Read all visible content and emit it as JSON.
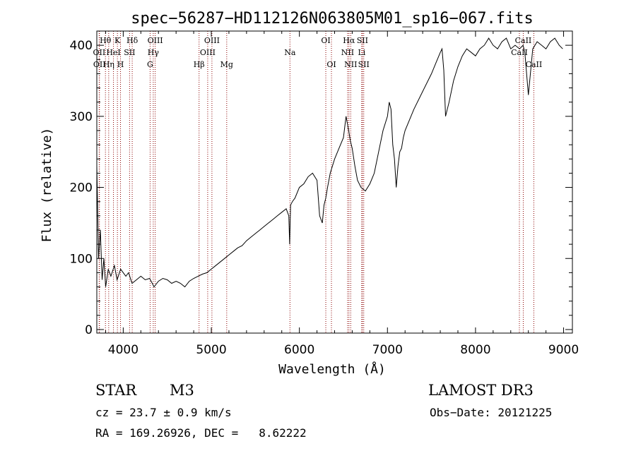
{
  "chart_data": {
    "type": "line",
    "title": "spec−56287−HD112126N063805M01_sp16−067.fits",
    "xlabel": "Wavelength (Å)",
    "ylabel": "Flux (relative)",
    "xlim": [
      3700,
      9100
    ],
    "ylim": [
      -5,
      420
    ],
    "xticks": [
      4000,
      5000,
      6000,
      7000,
      8000,
      9000
    ],
    "yticks": [
      0,
      100,
      200,
      300,
      400
    ],
    "series": [
      {
        "x": [
          3700,
          3720,
          3740,
          3760,
          3780,
          3800,
          3830,
          3860,
          3900,
          3930,
          3970,
          4000,
          4030,
          4060,
          4100,
          4150,
          4200,
          4250,
          4300,
          4350,
          4400,
          4450,
          4500,
          4550,
          4600,
          4650,
          4700,
          4750,
          4800,
          4850,
          4900,
          4950,
          5000,
          5050,
          5100,
          5150,
          5200,
          5250,
          5300,
          5350,
          5400,
          5450,
          5500,
          5550,
          5600,
          5650,
          5700,
          5750,
          5800,
          5850,
          5880,
          5890,
          5900,
          5920,
          5950,
          6000,
          6050,
          6100,
          6150,
          6200,
          6230,
          6260,
          6280,
          6300,
          6320,
          6350,
          6400,
          6450,
          6500,
          6530,
          6560,
          6580,
          6600,
          6630,
          6660,
          6700,
          6750,
          6800,
          6850,
          6900,
          6950,
          7000,
          7020,
          7040,
          7060,
          7080,
          7100,
          7120,
          7140,
          7160,
          7180,
          7200,
          7300,
          7400,
          7500,
          7550,
          7600,
          7620,
          7640,
          7660,
          7700,
          7750,
          7800,
          7850,
          7900,
          7950,
          8000,
          8050,
          8100,
          8150,
          8200,
          8250,
          8300,
          8350,
          8400,
          8450,
          8500,
          8540,
          8560,
          8600,
          8650,
          8700,
          8750,
          8800,
          8850,
          8900,
          8950,
          8990
        ],
        "y": [
          230,
          100,
          140,
          70,
          100,
          60,
          85,
          75,
          90,
          70,
          85,
          80,
          75,
          80,
          65,
          70,
          75,
          70,
          72,
          60,
          68,
          72,
          70,
          65,
          68,
          65,
          60,
          68,
          72,
          75,
          78,
          80,
          85,
          90,
          95,
          100,
          105,
          110,
          115,
          118,
          125,
          130,
          135,
          140,
          145,
          150,
          155,
          160,
          165,
          170,
          160,
          120,
          175,
          180,
          185,
          200,
          205,
          215,
          220,
          210,
          160,
          150,
          175,
          185,
          200,
          220,
          240,
          255,
          270,
          300,
          280,
          265,
          255,
          230,
          210,
          200,
          195,
          205,
          220,
          250,
          280,
          300,
          320,
          310,
          260,
          240,
          200,
          230,
          250,
          255,
          270,
          280,
          310,
          335,
          360,
          375,
          390,
          395,
          365,
          300,
          320,
          350,
          370,
          385,
          395,
          390,
          385,
          395,
          400,
          410,
          400,
          395,
          405,
          410,
          395,
          400,
          395,
          400,
          390,
          330,
          395,
          405,
          400,
          395,
          405,
          410,
          400,
          395
        ]
      }
    ],
    "lines": [
      {
        "label": "Hθ",
        "x": 3798,
        "row": 0
      },
      {
        "label": "OII",
        "x": 3727,
        "row": 1
      },
      {
        "label": "OII",
        "x": 3730,
        "row": 2
      },
      {
        "label": "K",
        "x": 3934,
        "row": 0
      },
      {
        "label": "HeI",
        "x": 3889,
        "row": 1
      },
      {
        "label": "Hη",
        "x": 3835,
        "row": 2
      },
      {
        "label": "Hδ",
        "x": 4102,
        "row": 0
      },
      {
        "label": "SII",
        "x": 4072,
        "row": 1
      },
      {
        "label": "H",
        "x": 3969,
        "row": 2
      },
      {
        "label": "OIII",
        "x": 4363,
        "row": 0
      },
      {
        "label": "Hγ",
        "x": 4341,
        "row": 1
      },
      {
        "label": "G",
        "x": 4305,
        "row": 2
      },
      {
        "label": "OIII",
        "x": 5007,
        "row": 0
      },
      {
        "label": "OIII",
        "x": 4959,
        "row": 1
      },
      {
        "label": "Hβ",
        "x": 4861,
        "row": 2
      },
      {
        "label": "Mg",
        "x": 5175,
        "row": 2
      },
      {
        "label": "Na",
        "x": 5893,
        "row": 1
      },
      {
        "label": "OI",
        "x": 6300,
        "row": 0
      },
      {
        "label": "OI",
        "x": 6364,
        "row": 2
      },
      {
        "label": "Hα",
        "x": 6563,
        "row": 0
      },
      {
        "label": "SII",
        "x": 6716,
        "row": 0
      },
      {
        "label": "NII",
        "x": 6548,
        "row": 1
      },
      {
        "label": "Li",
        "x": 6708,
        "row": 1
      },
      {
        "label": "NII",
        "x": 6583,
        "row": 2
      },
      {
        "label": "SII",
        "x": 6731,
        "row": 2
      },
      {
        "label": "CaII",
        "x": 8542,
        "row": 0
      },
      {
        "label": "CaII",
        "x": 8498,
        "row": 1
      },
      {
        "label": "CaII",
        "x": 8662,
        "row": 2
      }
    ],
    "grid": false,
    "line_color": "#8b0000"
  },
  "info": {
    "object_class": "STAR",
    "subclass": "M3",
    "survey": "LAMOST DR3",
    "redshift": "cz = 23.7 ± 0.9 km/s",
    "obs_date": "Obs−Date: 20121225",
    "coords": "RA = 169.26926, DEC =   8.62222"
  }
}
